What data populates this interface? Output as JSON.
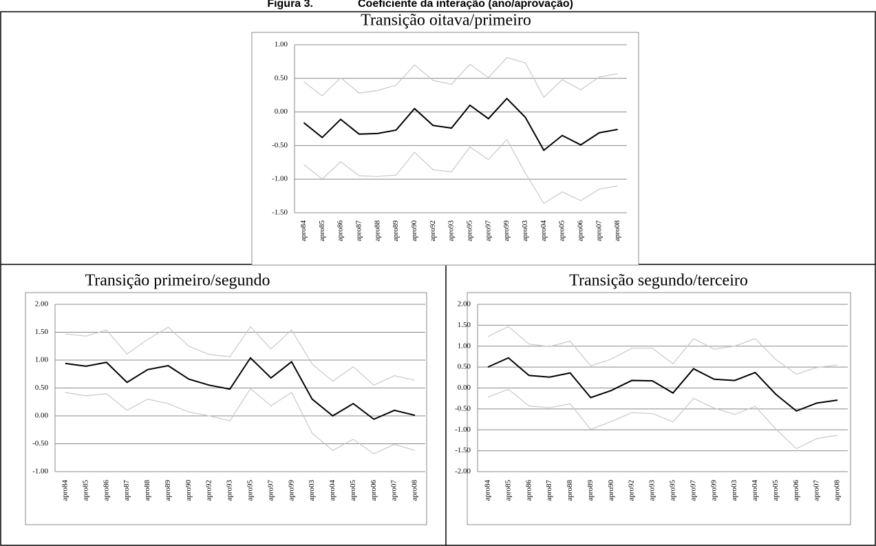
{
  "figure_label": "Figura 3.",
  "figure_title": "Coeficiente da interação (ano/aprovação)",
  "chart_data": [
    {
      "type": "line",
      "title": "Transição oitava/primeiro",
      "categories": [
        "apro84",
        "apro85",
        "apro86",
        "apro87",
        "apro88",
        "apro89",
        "apro90",
        "apro92",
        "apro93",
        "apro95",
        "apro97",
        "apro99",
        "apro03",
        "apro04",
        "apro05",
        "apro06",
        "apro07",
        "apro08"
      ],
      "series": [
        {
          "color": "#c8c8c8",
          "values": [
            0.45,
            0.24,
            0.51,
            0.28,
            0.32,
            0.4,
            0.7,
            0.47,
            0.41,
            0.71,
            0.51,
            0.81,
            0.73,
            0.22,
            0.48,
            0.33,
            0.52,
            0.57
          ]
        },
        {
          "color": "#c8c8c8",
          "values": [
            -0.78,
            -1.0,
            -0.74,
            -0.95,
            -0.96,
            -0.94,
            -0.6,
            -0.86,
            -0.89,
            -0.52,
            -0.71,
            -0.41,
            -0.91,
            -1.36,
            -1.19,
            -1.32,
            -1.15,
            -1.1
          ]
        },
        {
          "color": "#000000",
          "values": [
            -0.16,
            -0.38,
            -0.11,
            -0.33,
            -0.32,
            -0.27,
            0.05,
            -0.2,
            -0.24,
            0.1,
            -0.1,
            0.2,
            -0.08,
            -0.57,
            -0.35,
            -0.49,
            -0.31,
            -0.26
          ]
        }
      ],
      "ylim": [
        -1.5,
        1
      ],
      "yticks": [
        {
          "value": -1.5,
          "label": "-1.50"
        },
        {
          "value": -1,
          "label": "-1.00"
        },
        {
          "value": -0.5,
          "label": "-0.50"
        },
        {
          "value": 0,
          "label": "0.00"
        },
        {
          "value": 0.5,
          "label": "0.50"
        },
        {
          "value": 1,
          "label": "1.00"
        }
      ],
      "grid": true
    },
    {
      "type": "line",
      "title": "Transição primeiro/segundo",
      "categories": [
        "apro84",
        "apro85",
        "apro86",
        "apro87",
        "apro88",
        "apro89",
        "apro90",
        "apro92",
        "apro93",
        "apro95",
        "apro97",
        "apro99",
        "apro03",
        "apro04",
        "apro05",
        "apro06",
        "apro07",
        "apro08"
      ],
      "series": [
        {
          "color": "#c8c8c8",
          "values": [
            1.47,
            1.43,
            1.54,
            1.11,
            1.37,
            1.59,
            1.25,
            1.1,
            1.06,
            1.6,
            1.2,
            1.54,
            0.93,
            0.62,
            0.88,
            0.55,
            0.72,
            0.64
          ]
        },
        {
          "color": "#c8c8c8",
          "values": [
            0.42,
            0.36,
            0.4,
            0.1,
            0.3,
            0.22,
            0.07,
            0.0,
            -0.09,
            0.49,
            0.18,
            0.42,
            -0.31,
            -0.62,
            -0.42,
            -0.68,
            -0.51,
            -0.62
          ]
        },
        {
          "color": "#000000",
          "values": [
            0.94,
            0.89,
            0.96,
            0.6,
            0.83,
            0.9,
            0.66,
            0.55,
            0.48,
            1.04,
            0.68,
            0.97,
            0.3,
            0.0,
            0.22,
            -0.06,
            0.1,
            0.01
          ]
        }
      ],
      "ylim": [
        -1,
        2
      ],
      "yticks": [
        {
          "value": -1,
          "label": "-1.00"
        },
        {
          "value": -0.5,
          "label": "-0.50"
        },
        {
          "value": 0,
          "label": "0.00"
        },
        {
          "value": 0.5,
          "label": "0.50"
        },
        {
          "value": 1,
          "label": "1.00"
        },
        {
          "value": 1.5,
          "label": "1.50"
        },
        {
          "value": 2,
          "label": "2.00"
        }
      ],
      "grid": true
    },
    {
      "type": "line",
      "title": "Transição segundo/terceiro",
      "categories": [
        "apro84",
        "apro85",
        "apro86",
        "apro87",
        "apro88",
        "apro89",
        "apro90",
        "apro92",
        "apro93",
        "apro95",
        "apro97",
        "apro99",
        "apro03",
        "apro04",
        "apro05",
        "apro06",
        "apro07",
        "apro08"
      ],
      "series": [
        {
          "color": "#c8c8c8",
          "values": [
            1.23,
            1.47,
            1.05,
            0.99,
            1.12,
            0.53,
            0.69,
            0.95,
            0.95,
            0.58,
            1.18,
            0.93,
            1.0,
            1.18,
            0.68,
            0.33,
            0.49,
            0.55
          ]
        },
        {
          "color": "#c8c8c8",
          "values": [
            -0.22,
            -0.03,
            -0.43,
            -0.47,
            -0.38,
            -0.99,
            -0.8,
            -0.59,
            -0.61,
            -0.81,
            -0.25,
            -0.48,
            -0.63,
            -0.44,
            -0.98,
            -1.45,
            -1.21,
            -1.13
          ]
        },
        {
          "color": "#000000",
          "values": [
            0.5,
            0.72,
            0.3,
            0.26,
            0.36,
            -0.23,
            -0.06,
            0.18,
            0.17,
            -0.12,
            0.46,
            0.21,
            0.18,
            0.37,
            -0.15,
            -0.55,
            -0.36,
            -0.29
          ]
        }
      ],
      "ylim": [
        -2,
        2
      ],
      "yticks": [
        {
          "value": -2,
          "label": "-2.00"
        },
        {
          "value": -1.5,
          "label": "-1.50"
        },
        {
          "value": -1,
          "label": "-1.00"
        },
        {
          "value": -0.5,
          "label": "-0.50"
        },
        {
          "value": 0,
          "label": "0.00"
        },
        {
          "value": 0.5,
          "label": "0.50"
        },
        {
          "value": 1,
          "label": "1.00"
        },
        {
          "value": 1.5,
          "label": "1.50"
        },
        {
          "value": 2,
          "label": "2.00"
        }
      ],
      "grid": true
    }
  ]
}
